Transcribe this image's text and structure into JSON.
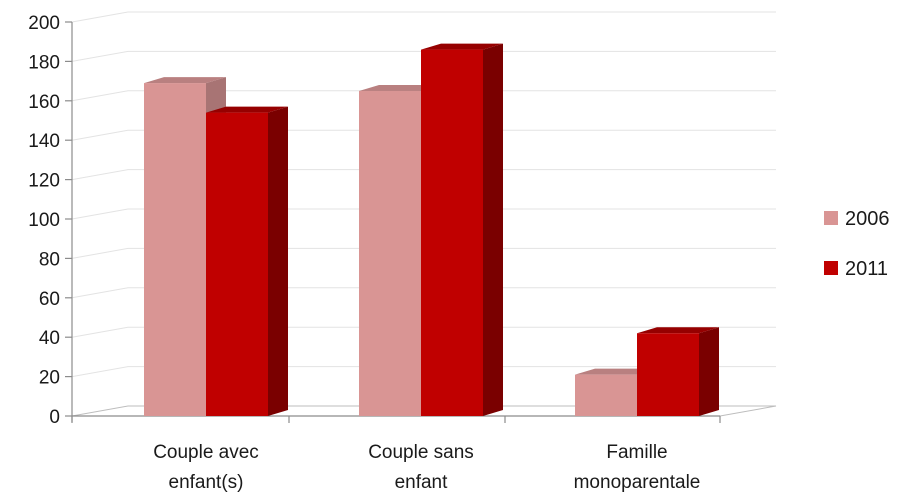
{
  "chart_data": {
    "type": "bar",
    "style": "3d-clustered-column",
    "categories": [
      [
        "Couple avec",
        "enfant(s)"
      ],
      [
        "Couple sans",
        "enfant"
      ],
      [
        "Famille",
        "monoparentale"
      ]
    ],
    "series": [
      {
        "name": "2006",
        "values": [
          169,
          165,
          21
        ],
        "color": "#d99594",
        "side": "#a87474",
        "top": "#b98080"
      },
      {
        "name": "2011",
        "values": [
          154,
          186,
          42
        ],
        "color": "#c00000",
        "side": "#7a0000",
        "top": "#960000"
      }
    ],
    "ylim": [
      0,
      200
    ],
    "yticks": [
      0,
      20,
      40,
      60,
      80,
      100,
      120,
      140,
      160,
      180,
      200
    ],
    "grid": true,
    "legend_position": "right",
    "title": "",
    "xlabel": "",
    "ylabel": ""
  }
}
